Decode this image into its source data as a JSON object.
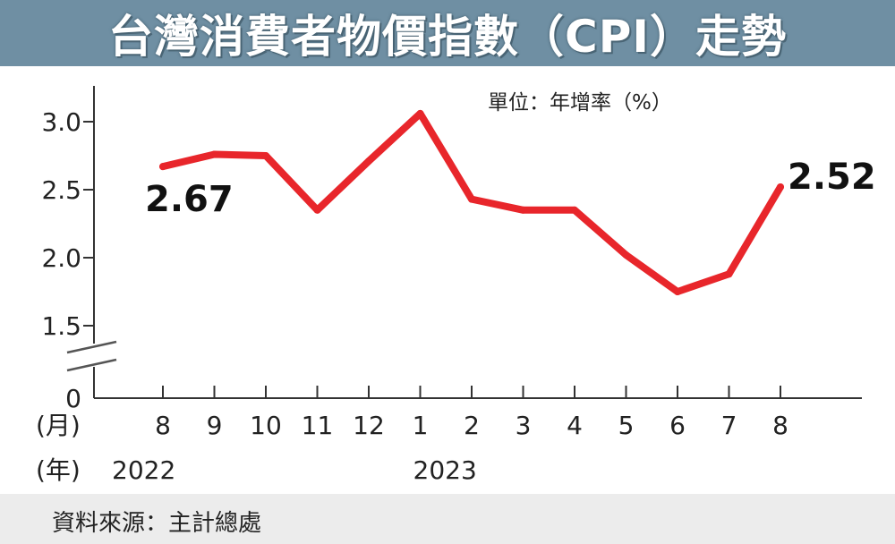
{
  "title": "台灣消費者物價指數（CPI）走勢",
  "source": "資料來源：主計總處",
  "colors": {
    "title_bg": "#6f8fa3",
    "line": "#e8262b",
    "footer_bg": "#ececec"
  },
  "chart_data": {
    "type": "line",
    "unit_label": "單位：年增率（%）",
    "x_label_month": "(月)",
    "x_label_year": "(年)",
    "categories": [
      "8",
      "9",
      "10",
      "11",
      "12",
      "1",
      "2",
      "3",
      "4",
      "5",
      "6",
      "7",
      "8"
    ],
    "years": [
      {
        "label": "2022",
        "at_index": 0
      },
      {
        "label": "2023",
        "at_index": 5
      }
    ],
    "series": [
      {
        "values": [
          2.67,
          2.76,
          2.75,
          2.35,
          2.71,
          3.06,
          2.43,
          2.35,
          2.35,
          2.02,
          1.75,
          1.88,
          2.52
        ]
      }
    ],
    "y_ticks": [
      {
        "value": 0,
        "label": "0"
      },
      {
        "value": 1.5,
        "label": "1.5"
      },
      {
        "value": 2.0,
        "label": "2.0"
      },
      {
        "value": 2.5,
        "label": "2.5"
      },
      {
        "value": 3.0,
        "label": "3.0"
      }
    ],
    "ylim": [
      1.5,
      3.25
    ],
    "axis_break": true,
    "grid": false,
    "annotations": [
      {
        "index": 0,
        "text": "2.67"
      },
      {
        "index": 12,
        "text": "2.52"
      }
    ]
  }
}
